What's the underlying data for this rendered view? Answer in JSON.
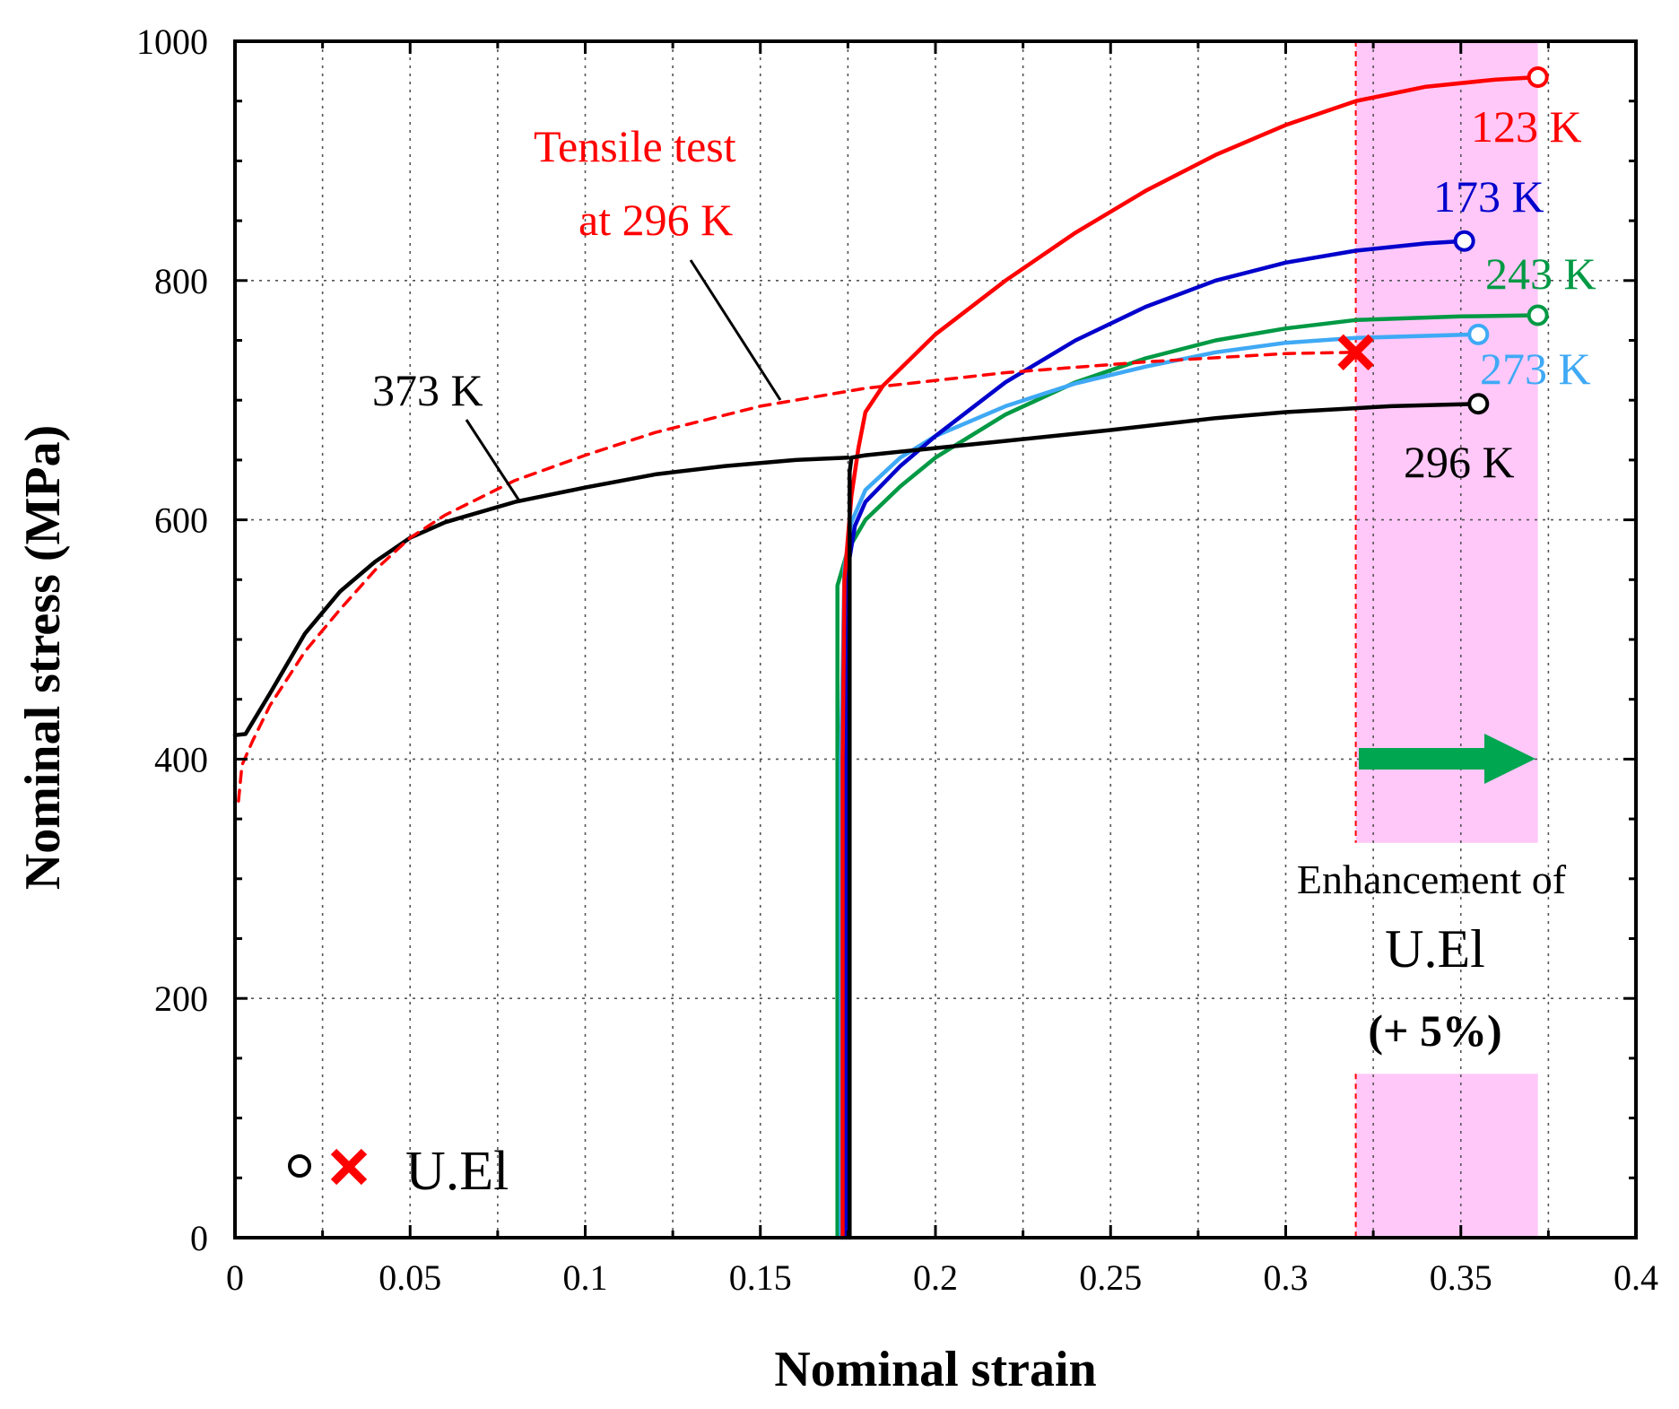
{
  "chart_data": {
    "type": "line",
    "xlabel": "Nominal strain",
    "ylabel": "Nominal stress (MPa)",
    "xlim": [
      0,
      0.4
    ],
    "ylim": [
      0,
      1000
    ],
    "x_ticks": [
      "0",
      "0.05",
      "0.1",
      "0.15",
      "0.2",
      "0.25",
      "0.3",
      "0.35",
      "0.4"
    ],
    "y_ticks": [
      "0",
      "200",
      "400",
      "600",
      "800",
      "1000"
    ],
    "grid": true,
    "series": [
      {
        "name": "373 K",
        "color": "#000000",
        "style": "solid",
        "points": [
          [
            0,
            420
          ],
          [
            0.003,
            421
          ],
          [
            0.01,
            455
          ],
          [
            0.02,
            505
          ],
          [
            0.03,
            540
          ],
          [
            0.04,
            565
          ],
          [
            0.05,
            585
          ],
          [
            0.06,
            598
          ],
          [
            0.08,
            615
          ],
          [
            0.1,
            627
          ],
          [
            0.12,
            638
          ],
          [
            0.14,
            645
          ],
          [
            0.16,
            650
          ],
          [
            0.175,
            652
          ]
        ]
      },
      {
        "name": "Tensile test at 296 K",
        "color": "#ff0000",
        "style": "dashed",
        "points": [
          [
            0.001,
            365
          ],
          [
            0.002,
            395
          ],
          [
            0.005,
            415
          ],
          [
            0.01,
            445
          ],
          [
            0.02,
            490
          ],
          [
            0.03,
            525
          ],
          [
            0.04,
            558
          ],
          [
            0.05,
            585
          ],
          [
            0.06,
            604
          ],
          [
            0.08,
            633
          ],
          [
            0.1,
            654
          ],
          [
            0.12,
            673
          ],
          [
            0.15,
            695
          ],
          [
            0.18,
            710
          ],
          [
            0.22,
            723
          ],
          [
            0.26,
            732
          ],
          [
            0.3,
            739
          ],
          [
            0.32,
            740
          ]
        ],
        "u_el": [
          0.32,
          740
        ],
        "u_el_marker": "cross"
      },
      {
        "name": "123 K",
        "color": "#ff0000",
        "style": "solid",
        "points": [
          [
            0.1735,
            0
          ],
          [
            0.1735,
            200
          ],
          [
            0.1735,
            400
          ],
          [
            0.174,
            550
          ],
          [
            0.176,
            620
          ],
          [
            0.178,
            660
          ],
          [
            0.18,
            690
          ],
          [
            0.185,
            712
          ],
          [
            0.2,
            755
          ],
          [
            0.22,
            800
          ],
          [
            0.24,
            840
          ],
          [
            0.26,
            875
          ],
          [
            0.28,
            905
          ],
          [
            0.3,
            930
          ],
          [
            0.32,
            950
          ],
          [
            0.34,
            962
          ],
          [
            0.36,
            968
          ],
          [
            0.372,
            970
          ]
        ],
        "u_el": [
          0.372,
          970
        ],
        "u_el_marker": "circle"
      },
      {
        "name": "173 K",
        "color": "#0000cc",
        "style": "solid",
        "points": [
          [
            0.1745,
            0
          ],
          [
            0.1745,
            200
          ],
          [
            0.1745,
            400
          ],
          [
            0.175,
            560
          ],
          [
            0.177,
            595
          ],
          [
            0.18,
            615
          ],
          [
            0.19,
            645
          ],
          [
            0.2,
            670
          ],
          [
            0.22,
            715
          ],
          [
            0.24,
            750
          ],
          [
            0.26,
            778
          ],
          [
            0.28,
            800
          ],
          [
            0.3,
            815
          ],
          [
            0.32,
            825
          ],
          [
            0.34,
            831
          ],
          [
            0.351,
            833
          ]
        ],
        "u_el": [
          0.351,
          833
        ],
        "u_el_marker": "circle"
      },
      {
        "name": "243 K",
        "color": "#009944",
        "style": "solid",
        "points": [
          [
            0.172,
            0
          ],
          [
            0.172,
            200
          ],
          [
            0.172,
            400
          ],
          [
            0.172,
            545
          ],
          [
            0.175,
            575
          ],
          [
            0.18,
            600
          ],
          [
            0.19,
            628
          ],
          [
            0.2,
            652
          ],
          [
            0.22,
            688
          ],
          [
            0.24,
            715
          ],
          [
            0.26,
            735
          ],
          [
            0.28,
            750
          ],
          [
            0.3,
            760
          ],
          [
            0.32,
            767
          ],
          [
            0.35,
            770
          ],
          [
            0.372,
            771
          ]
        ],
        "u_el": [
          0.372,
          771
        ],
        "u_el_marker": "circle"
      },
      {
        "name": "273 K",
        "color": "#3fa9f5",
        "style": "solid",
        "points": [
          [
            0.173,
            0
          ],
          [
            0.173,
            200
          ],
          [
            0.173,
            400
          ],
          [
            0.174,
            560
          ],
          [
            0.176,
            598
          ],
          [
            0.18,
            625
          ],
          [
            0.19,
            652
          ],
          [
            0.2,
            670
          ],
          [
            0.22,
            695
          ],
          [
            0.24,
            714
          ],
          [
            0.26,
            728
          ],
          [
            0.28,
            740
          ],
          [
            0.3,
            748
          ],
          [
            0.32,
            752
          ],
          [
            0.355,
            755
          ]
        ],
        "u_el": [
          0.355,
          755
        ],
        "u_el_marker": "circle"
      },
      {
        "name": "296 K",
        "color": "#000000",
        "style": "solid",
        "points": [
          [
            0.1755,
            0
          ],
          [
            0.1755,
            200
          ],
          [
            0.1755,
            400
          ],
          [
            0.1755,
            580
          ],
          [
            0.1755,
            640
          ],
          [
            0.176,
            652
          ],
          [
            0.18,
            654
          ],
          [
            0.2,
            660
          ],
          [
            0.22,
            666
          ],
          [
            0.25,
            675
          ],
          [
            0.28,
            685
          ],
          [
            0.3,
            690
          ],
          [
            0.33,
            695
          ],
          [
            0.355,
            697
          ]
        ],
        "u_el": [
          0.355,
          697
        ],
        "u_el_marker": "circle"
      }
    ],
    "curve_labels": {
      "k373": "373 K",
      "tensile_line1": "Tensile test",
      "tensile_line2": "at 296 K",
      "k123": "123 K",
      "k173": "173 K",
      "k243": "243 K",
      "k273": "273 K",
      "k296": "296 K"
    },
    "annotations": {
      "shaded_region_x": [
        0.32,
        0.372
      ],
      "shaded_color": "#ffc8f8",
      "enhancement_line1": "Enhancement  of",
      "enhancement_line2": "U.El",
      "enhancement_line3": "(+ 5%)",
      "legend_text": "U.El"
    }
  }
}
